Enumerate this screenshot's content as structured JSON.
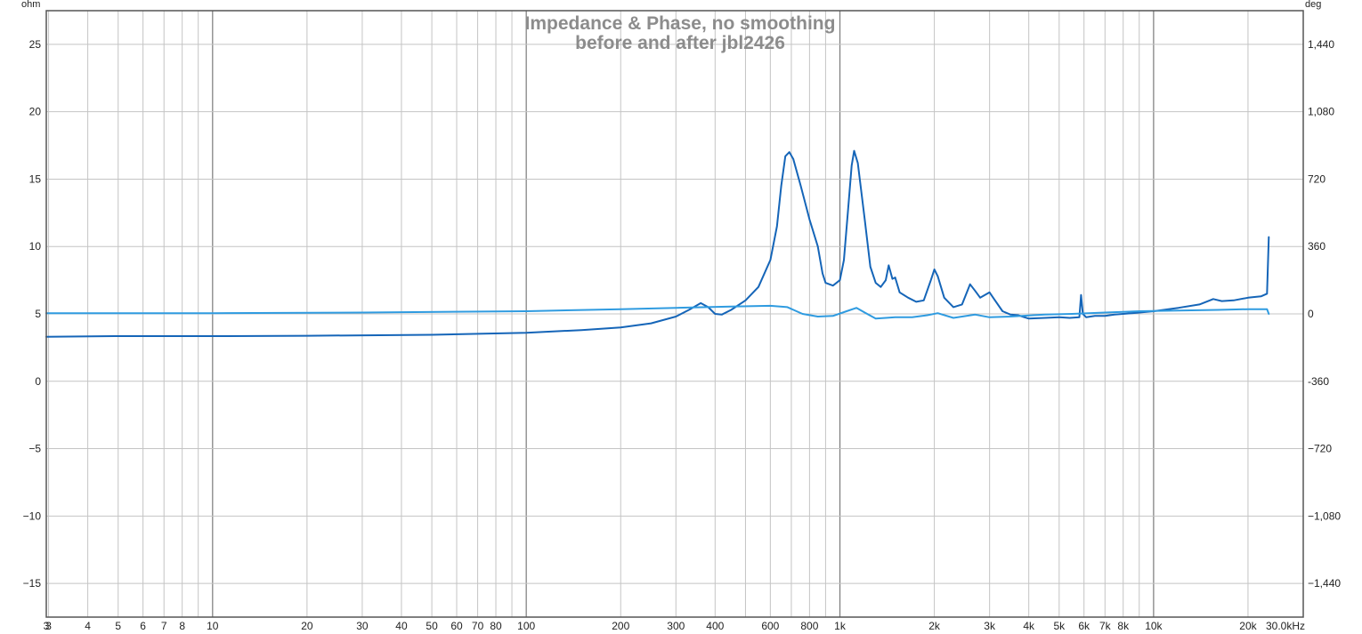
{
  "chart_data": {
    "type": "line",
    "title": "Impedance & Phase, no smoothing",
    "subtitle": "before and after jbl2426",
    "y_unit_left": "ohm",
    "y_unit_right": "deg",
    "x_scale": "log",
    "xlim": [
      2.95,
      30000
    ],
    "ylim": [
      -17.5,
      27.5
    ],
    "y2lim": [
      -1620,
      1620
    ],
    "grid": true,
    "colors": {
      "series_a": "#1565b8",
      "series_b": "#2f9be0"
    },
    "x_ticks": [
      {
        "v": 2.95,
        "label": "3"
      },
      {
        "v": 3,
        "label": "3"
      },
      {
        "v": 4,
        "label": "4"
      },
      {
        "v": 5,
        "label": "5"
      },
      {
        "v": 6,
        "label": "6"
      },
      {
        "v": 7,
        "label": "7"
      },
      {
        "v": 8,
        "label": "8"
      },
      {
        "v": 10,
        "label": "10"
      },
      {
        "v": 20,
        "label": "20"
      },
      {
        "v": 30,
        "label": "30"
      },
      {
        "v": 40,
        "label": "40"
      },
      {
        "v": 50,
        "label": "50"
      },
      {
        "v": 60,
        "label": "60"
      },
      {
        "v": 70,
        "label": "70"
      },
      {
        "v": 80,
        "label": "80"
      },
      {
        "v": 100,
        "label": "100"
      },
      {
        "v": 200,
        "label": "200"
      },
      {
        "v": 300,
        "label": "300"
      },
      {
        "v": 400,
        "label": "400"
      },
      {
        "v": 600,
        "label": "600"
      },
      {
        "v": 800,
        "label": "800"
      },
      {
        "v": 1000,
        "label": "1k"
      },
      {
        "v": 2000,
        "label": "2k"
      },
      {
        "v": 3000,
        "label": "3k"
      },
      {
        "v": 4000,
        "label": "4k"
      },
      {
        "v": 5000,
        "label": "5k"
      },
      {
        "v": 6000,
        "label": "6k"
      },
      {
        "v": 7000,
        "label": "7k"
      },
      {
        "v": 8000,
        "label": "8k"
      },
      {
        "v": 10000,
        "label": "10k"
      },
      {
        "v": 20000,
        "label": "20k"
      },
      {
        "v": 30000,
        "label": "30.0kHz"
      }
    ],
    "y_ticks": [
      {
        "v": 25,
        "label": "25"
      },
      {
        "v": 20,
        "label": "20"
      },
      {
        "v": 15,
        "label": "15"
      },
      {
        "v": 10,
        "label": "10"
      },
      {
        "v": 5,
        "label": "5"
      },
      {
        "v": 0,
        "label": "0"
      },
      {
        "v": -5,
        "label": "−5"
      },
      {
        "v": -10,
        "label": "−10"
      },
      {
        "v": -15,
        "label": "−15"
      }
    ],
    "y2_ticks": [
      {
        "v": 1440,
        "label": "1,440"
      },
      {
        "v": 1080,
        "label": "1,080"
      },
      {
        "v": 720,
        "label": "720"
      },
      {
        "v": 360,
        "label": "360"
      },
      {
        "v": 0,
        "label": "0"
      },
      {
        "v": -360,
        "label": "-360"
      },
      {
        "v": -720,
        "label": "−720"
      },
      {
        "v": -1080,
        "label": "−1,080"
      },
      {
        "v": -1440,
        "label": "−1,440"
      }
    ],
    "series": [
      {
        "color_key": "series_a",
        "points": [
          [
            2.95,
            3.3
          ],
          [
            5,
            3.35
          ],
          [
            10,
            3.35
          ],
          [
            20,
            3.38
          ],
          [
            50,
            3.45
          ],
          [
            100,
            3.6
          ],
          [
            150,
            3.8
          ],
          [
            200,
            4.0
          ],
          [
            250,
            4.3
          ],
          [
            300,
            4.8
          ],
          [
            330,
            5.3
          ],
          [
            360,
            5.8
          ],
          [
            380,
            5.5
          ],
          [
            400,
            5.0
          ],
          [
            420,
            4.95
          ],
          [
            450,
            5.3
          ],
          [
            500,
            6.0
          ],
          [
            550,
            7.0
          ],
          [
            600,
            9.0
          ],
          [
            630,
            11.5
          ],
          [
            650,
            14.5
          ],
          [
            670,
            16.7
          ],
          [
            690,
            17.0
          ],
          [
            710,
            16.5
          ],
          [
            750,
            14.5
          ],
          [
            800,
            12.0
          ],
          [
            850,
            10.0
          ],
          [
            880,
            8.0
          ],
          [
            900,
            7.3
          ],
          [
            950,
            7.1
          ],
          [
            1000,
            7.5
          ],
          [
            1030,
            9.0
          ],
          [
            1060,
            12.5
          ],
          [
            1090,
            16.0
          ],
          [
            1110,
            17.1
          ],
          [
            1140,
            16.2
          ],
          [
            1200,
            12.0
          ],
          [
            1250,
            8.5
          ],
          [
            1300,
            7.3
          ],
          [
            1350,
            7.0
          ],
          [
            1400,
            7.5
          ],
          [
            1430,
            8.6
          ],
          [
            1470,
            7.6
          ],
          [
            1500,
            7.7
          ],
          [
            1550,
            6.6
          ],
          [
            1650,
            6.2
          ],
          [
            1750,
            5.9
          ],
          [
            1850,
            6.0
          ],
          [
            1950,
            7.5
          ],
          [
            2000,
            8.3
          ],
          [
            2050,
            7.8
          ],
          [
            2150,
            6.2
          ],
          [
            2300,
            5.5
          ],
          [
            2450,
            5.7
          ],
          [
            2600,
            7.2
          ],
          [
            2700,
            6.7
          ],
          [
            2800,
            6.2
          ],
          [
            3000,
            6.6
          ],
          [
            3100,
            6.1
          ],
          [
            3300,
            5.2
          ],
          [
            3500,
            4.95
          ],
          [
            3700,
            4.9
          ],
          [
            4000,
            4.65
          ],
          [
            4500,
            4.7
          ],
          [
            5000,
            4.75
          ],
          [
            5400,
            4.7
          ],
          [
            5800,
            4.75
          ],
          [
            5870,
            6.4
          ],
          [
            5950,
            5.0
          ],
          [
            6100,
            4.75
          ],
          [
            6500,
            4.85
          ],
          [
            7000,
            4.85
          ],
          [
            7500,
            4.95
          ],
          [
            8000,
            5.0
          ],
          [
            9000,
            5.1
          ],
          [
            10000,
            5.2
          ],
          [
            12000,
            5.45
          ],
          [
            14000,
            5.7
          ],
          [
            15500,
            6.1
          ],
          [
            16500,
            5.95
          ],
          [
            18000,
            6.0
          ],
          [
            20000,
            6.2
          ],
          [
            22000,
            6.3
          ],
          [
            23000,
            6.5
          ],
          [
            23300,
            10.7
          ]
        ]
      },
      {
        "color_key": "series_b",
        "points": [
          [
            2.95,
            5.05
          ],
          [
            10,
            5.05
          ],
          [
            30,
            5.1
          ],
          [
            100,
            5.2
          ],
          [
            200,
            5.35
          ],
          [
            300,
            5.45
          ],
          [
            450,
            5.55
          ],
          [
            600,
            5.6
          ],
          [
            680,
            5.5
          ],
          [
            760,
            5.0
          ],
          [
            850,
            4.8
          ],
          [
            950,
            4.85
          ],
          [
            1050,
            5.2
          ],
          [
            1130,
            5.45
          ],
          [
            1200,
            5.1
          ],
          [
            1300,
            4.65
          ],
          [
            1400,
            4.7
          ],
          [
            1500,
            4.75
          ],
          [
            1700,
            4.75
          ],
          [
            1900,
            4.9
          ],
          [
            2050,
            5.05
          ],
          [
            2300,
            4.7
          ],
          [
            2700,
            4.95
          ],
          [
            3000,
            4.75
          ],
          [
            3500,
            4.8
          ],
          [
            4500,
            4.95
          ],
          [
            5500,
            5.0
          ],
          [
            7000,
            5.1
          ],
          [
            9000,
            5.2
          ],
          [
            12000,
            5.25
          ],
          [
            16000,
            5.3
          ],
          [
            20000,
            5.35
          ],
          [
            23000,
            5.35
          ],
          [
            23300,
            5.0
          ]
        ]
      }
    ]
  }
}
